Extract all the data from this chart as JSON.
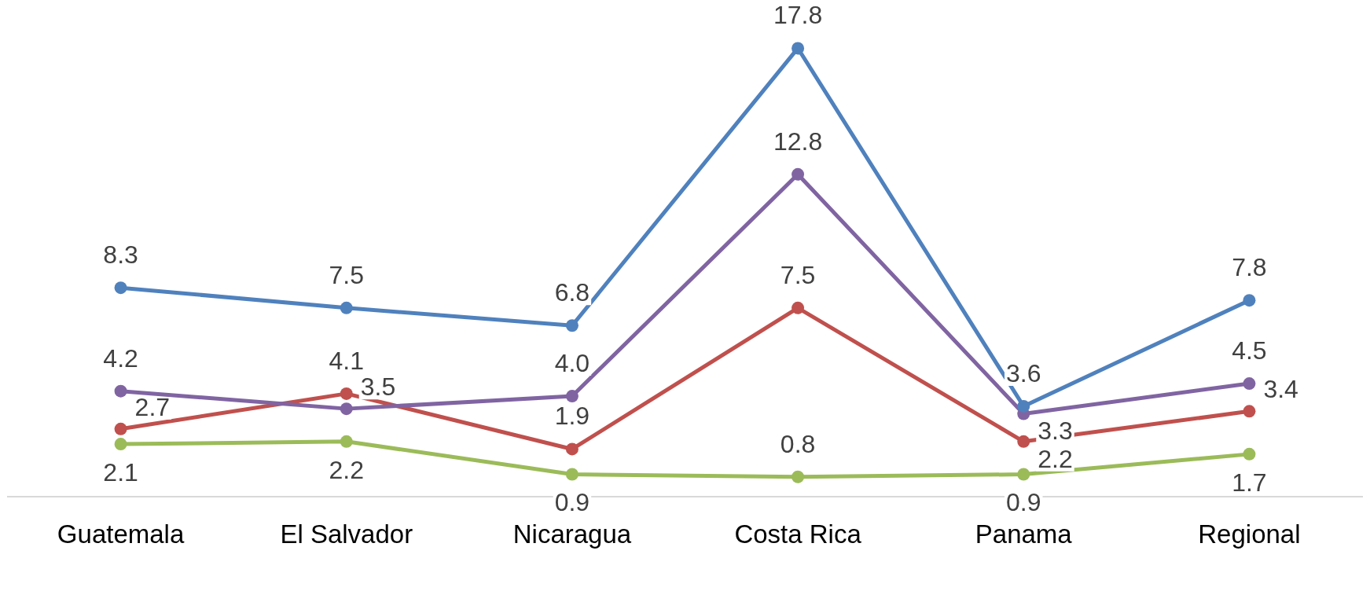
{
  "chart_data": {
    "type": "line",
    "categories": [
      "Guatemala",
      "El Salvador",
      "Nicaragua",
      "Costa Rica",
      "Panama",
      "Regional"
    ],
    "series": [
      {
        "color": "#4f81bd",
        "values": [
          8.3,
          7.5,
          6.8,
          17.8,
          3.6,
          7.8
        ],
        "value_labels": [
          "8.3",
          "7.5",
          "6.8",
          "17.8",
          "3.6",
          "7.8"
        ]
      },
      {
        "color": "#8064a2",
        "values": [
          4.2,
          3.5,
          4.0,
          12.8,
          3.3,
          4.5
        ],
        "value_labels": [
          "4.2",
          "3.5",
          "4.0",
          "12.8",
          "3.3",
          "4.5"
        ]
      },
      {
        "color": "#c0504d",
        "values": [
          2.7,
          4.1,
          1.9,
          7.5,
          2.2,
          3.4
        ],
        "value_labels": [
          "2.7",
          "4.1",
          "1.9",
          "7.5",
          "2.2",
          "3.4"
        ]
      },
      {
        "color": "#9bbb59",
        "values": [
          2.1,
          2.2,
          0.9,
          0.8,
          0.9,
          1.7
        ],
        "value_labels": [
          "2.1",
          "2.2",
          "0.9",
          "0.8",
          "0.9",
          "1.7"
        ]
      }
    ],
    "marker": "circle",
    "line_style": "solid",
    "grid": false,
    "legend": false,
    "tick_labels": "x"
  }
}
